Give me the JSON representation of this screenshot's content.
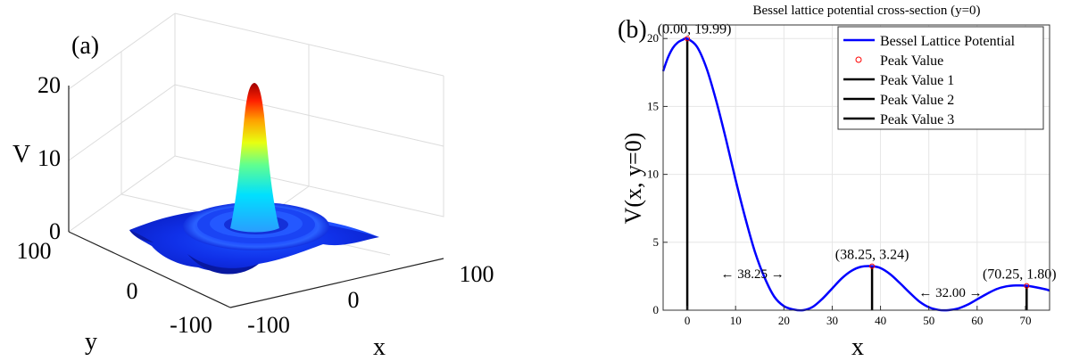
{
  "panel_a": {
    "label": "(a)",
    "zlabel": "V",
    "xlabel": "x",
    "ylabel": "y",
    "z_ticks": [
      "0",
      "10",
      "20"
    ],
    "x_ticks": [
      "-100",
      "0",
      "100"
    ],
    "y_ticks": [
      "-100",
      "0",
      "100"
    ],
    "colormap": [
      "#00008f",
      "#0000ff",
      "#0080ff",
      "#00ffff",
      "#80ff80",
      "#ffff00",
      "#ff8000",
      "#ff0000",
      "#800000"
    ]
  },
  "panel_b": {
    "label": "(b)",
    "legend": {
      "line": "Bessel Lattice Potential",
      "marker": "Peak Value",
      "peak1": "Peak Value 1",
      "peak2": "Peak Value 2",
      "peak3": "Peak Value 3"
    },
    "annotations": {
      "peak1": "(0.00, 19.99)",
      "peak2": "(38.25, 3.24)",
      "peak3": "(70.25, 1.80)",
      "dist1": "← 38.25 →",
      "dist2": "← 32.00 →"
    }
  },
  "chart_data": [
    {
      "type": "surface",
      "zlabel": "V",
      "xlabel": "x",
      "ylabel": "y",
      "xlim": [
        -100,
        100
      ],
      "ylim": [
        -100,
        100
      ],
      "zlim": [
        0,
        20
      ],
      "peak_value": 19.99
    },
    {
      "type": "line",
      "title": "Bessel lattice potential cross-section (y=0)",
      "xlabel": "x",
      "ylabel": "V(x, y=0)",
      "xlim": [
        -5,
        75
      ],
      "ylim": [
        0,
        21
      ],
      "grid": true,
      "legend_position": "top-right",
      "x_ticks": [
        0,
        10,
        20,
        30,
        40,
        50,
        60,
        70
      ],
      "y_ticks": [
        0,
        5,
        10,
        15,
        20
      ],
      "series": [
        {
          "name": "Bessel Lattice Potential",
          "color": "#0000ff",
          "x": [
            -5,
            -4,
            -3,
            -2,
            -1,
            0,
            2,
            4,
            6,
            8,
            10,
            12,
            14,
            16,
            18,
            20,
            22,
            24,
            26,
            28,
            30,
            32,
            34,
            36,
            38.25,
            40,
            42,
            44,
            46,
            48,
            50,
            52,
            54,
            56,
            58,
            60,
            62,
            64,
            66,
            68,
            70.25,
            72,
            74,
            75
          ],
          "y": [
            17.6,
            18.6,
            19.3,
            19.7,
            19.9,
            19.99,
            19.4,
            17.8,
            15.4,
            12.6,
            9.6,
            6.8,
            4.3,
            2.4,
            1.0,
            0.3,
            0.05,
            0.0,
            0.25,
            0.85,
            1.6,
            2.35,
            2.9,
            3.2,
            3.24,
            3.1,
            2.65,
            2.0,
            1.3,
            0.65,
            0.22,
            0.02,
            0.0,
            0.12,
            0.4,
            0.8,
            1.2,
            1.55,
            1.75,
            1.82,
            1.8,
            1.7,
            1.55,
            1.45
          ]
        }
      ],
      "peaks": [
        {
          "name": "Peak Value 1",
          "x": 0.0,
          "y": 19.99
        },
        {
          "name": "Peak Value 2",
          "x": 38.25,
          "y": 3.24
        },
        {
          "name": "Peak Value 3",
          "x": 70.25,
          "y": 1.8
        }
      ],
      "distances": [
        {
          "from": 0,
          "to": 38.25,
          "value": 38.25
        },
        {
          "from": 38.25,
          "to": 70.25,
          "value": 32.0
        }
      ],
      "marker_color": "#ff0000",
      "peak_line_color": "#000000"
    }
  ]
}
